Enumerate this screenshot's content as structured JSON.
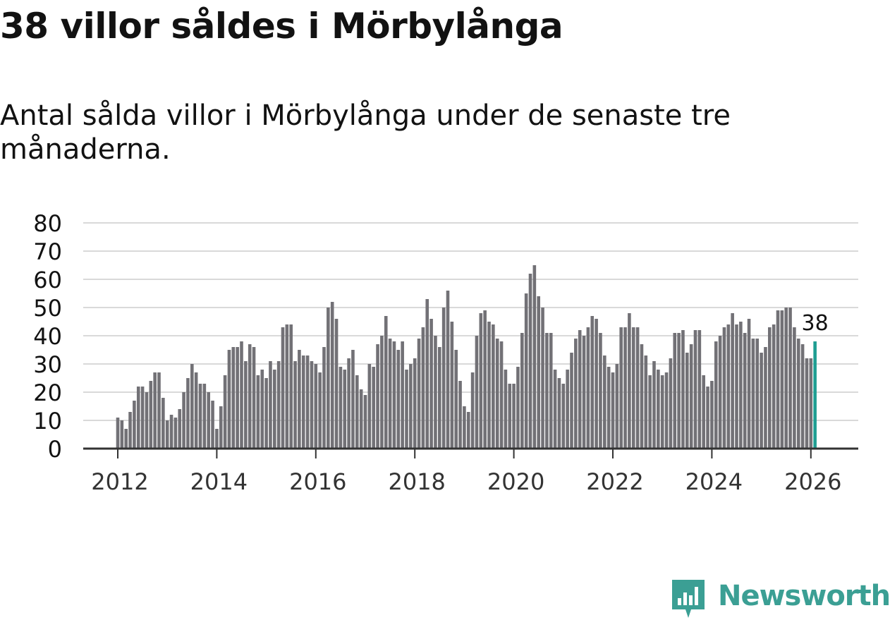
{
  "title": "38 villor såldes i Mörbylånga",
  "subtitle": "Antal sålda villor i Mörbylånga under de senaste tre månaderna.",
  "brand": {
    "name": "Newsworthy",
    "icon": "newsworthy-logo-icon",
    "color": "#3b9f94"
  },
  "colors": {
    "bar": "#727176",
    "highlight": "#1f9e92",
    "grid": "#d9d9d9",
    "axis": "#333333",
    "text": "#121212"
  },
  "chart_data": {
    "type": "bar",
    "title": "38 villor såldes i Mörbylånga",
    "xlabel": "",
    "ylabel": "",
    "ylim": [
      0,
      80
    ],
    "yticks": [
      "0",
      "10",
      "20",
      "30",
      "40",
      "50",
      "60",
      "70",
      "80"
    ],
    "xticks": [
      "2012",
      "2014",
      "2016",
      "2018",
      "2020",
      "2022",
      "2024",
      "2026"
    ],
    "start": "2012-01",
    "frequency": "monthly",
    "highlight_label": "38",
    "values": [
      11,
      10,
      7,
      13,
      17,
      22,
      22,
      20,
      24,
      27,
      27,
      18,
      10,
      12,
      11,
      14,
      20,
      25,
      30,
      27,
      23,
      23,
      20,
      17,
      7,
      15,
      26,
      35,
      36,
      36,
      38,
      31,
      37,
      36,
      26,
      28,
      25,
      31,
      28,
      31,
      43,
      44,
      44,
      31,
      35,
      33,
      33,
      31,
      30,
      27,
      36,
      50,
      52,
      46,
      29,
      28,
      32,
      35,
      26,
      21,
      19,
      30,
      29,
      37,
      40,
      47,
      39,
      38,
      35,
      38,
      28,
      30,
      32,
      39,
      43,
      53,
      46,
      40,
      36,
      50,
      56,
      45,
      35,
      24,
      15,
      13,
      27,
      40,
      48,
      49,
      45,
      44,
      39,
      38,
      28,
      23,
      23,
      29,
      41,
      55,
      62,
      65,
      54,
      50,
      41,
      41,
      28,
      25,
      23,
      28,
      34,
      39,
      42,
      40,
      43,
      47,
      46,
      41,
      33,
      29,
      27,
      30,
      43,
      43,
      48,
      43,
      43,
      37,
      33,
      26,
      31,
      28,
      26,
      27,
      32,
      41,
      41,
      42,
      34,
      37,
      42,
      42,
      26,
      22,
      24,
      38,
      40,
      43,
      44,
      48,
      44,
      45,
      41,
      46,
      39,
      39,
      34,
      36,
      43,
      44,
      49,
      49,
      50,
      50,
      43,
      39,
      37,
      32,
      32,
      38
    ]
  }
}
